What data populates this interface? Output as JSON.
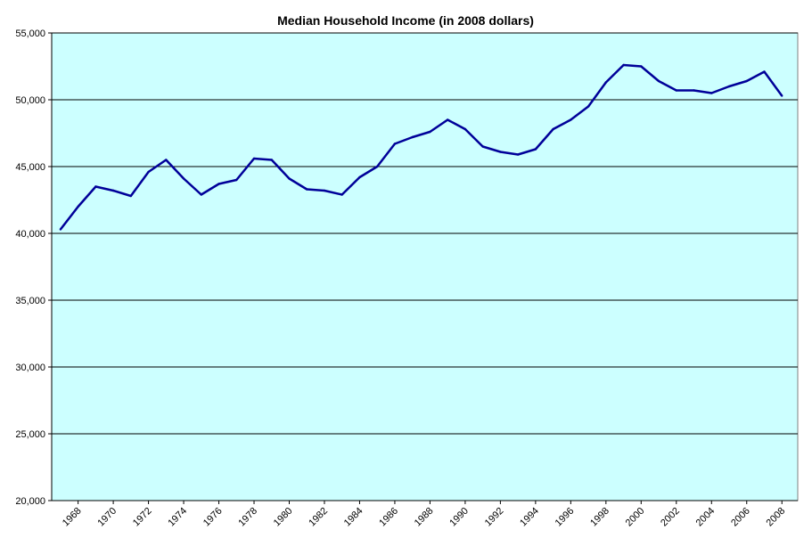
{
  "chart_data": {
    "type": "line",
    "title": "Median Household Income (in 2008 dollars)",
    "xlabel": "",
    "ylabel": "",
    "ylim": [
      20000,
      55000
    ],
    "y_ticks": [
      20000,
      25000,
      30000,
      35000,
      40000,
      45000,
      50000,
      55000
    ],
    "y_tick_labels": [
      "20,000",
      "25,000",
      "30,000",
      "35,000",
      "40,000",
      "45,000",
      "50,000",
      "55,000"
    ],
    "x_tick_labels": [
      "1968",
      "1970",
      "1972",
      "1974",
      "1976",
      "1978",
      "1980",
      "1982",
      "1984",
      "1986",
      "1988",
      "1990",
      "1992",
      "1994",
      "1996",
      "1998",
      "2000",
      "2002",
      "2004",
      "2006",
      "2008"
    ],
    "grid": true,
    "colors": {
      "plot_background": "#ccffff",
      "line": "#000099"
    },
    "series": [
      {
        "name": "Median Household Income",
        "x": [
          1967,
          1968,
          1969,
          1970,
          1971,
          1972,
          1973,
          1974,
          1975,
          1976,
          1977,
          1978,
          1979,
          1980,
          1981,
          1982,
          1983,
          1984,
          1985,
          1986,
          1987,
          1988,
          1989,
          1990,
          1991,
          1992,
          1993,
          1994,
          1995,
          1996,
          1997,
          1998,
          1999,
          2000,
          2001,
          2002,
          2003,
          2004,
          2005,
          2006,
          2007,
          2008
        ],
        "values": [
          40300,
          42000,
          43500,
          43200,
          42800,
          44600,
          45500,
          44100,
          42900,
          43700,
          44000,
          45600,
          45500,
          44100,
          43300,
          43200,
          42900,
          44200,
          45000,
          46700,
          47200,
          47600,
          48500,
          47800,
          46500,
          46100,
          45900,
          46300,
          47800,
          48500,
          49500,
          51300,
          52600,
          52500,
          51400,
          50700,
          50700,
          50500,
          51000,
          51400,
          52100,
          50300
        ]
      }
    ]
  }
}
